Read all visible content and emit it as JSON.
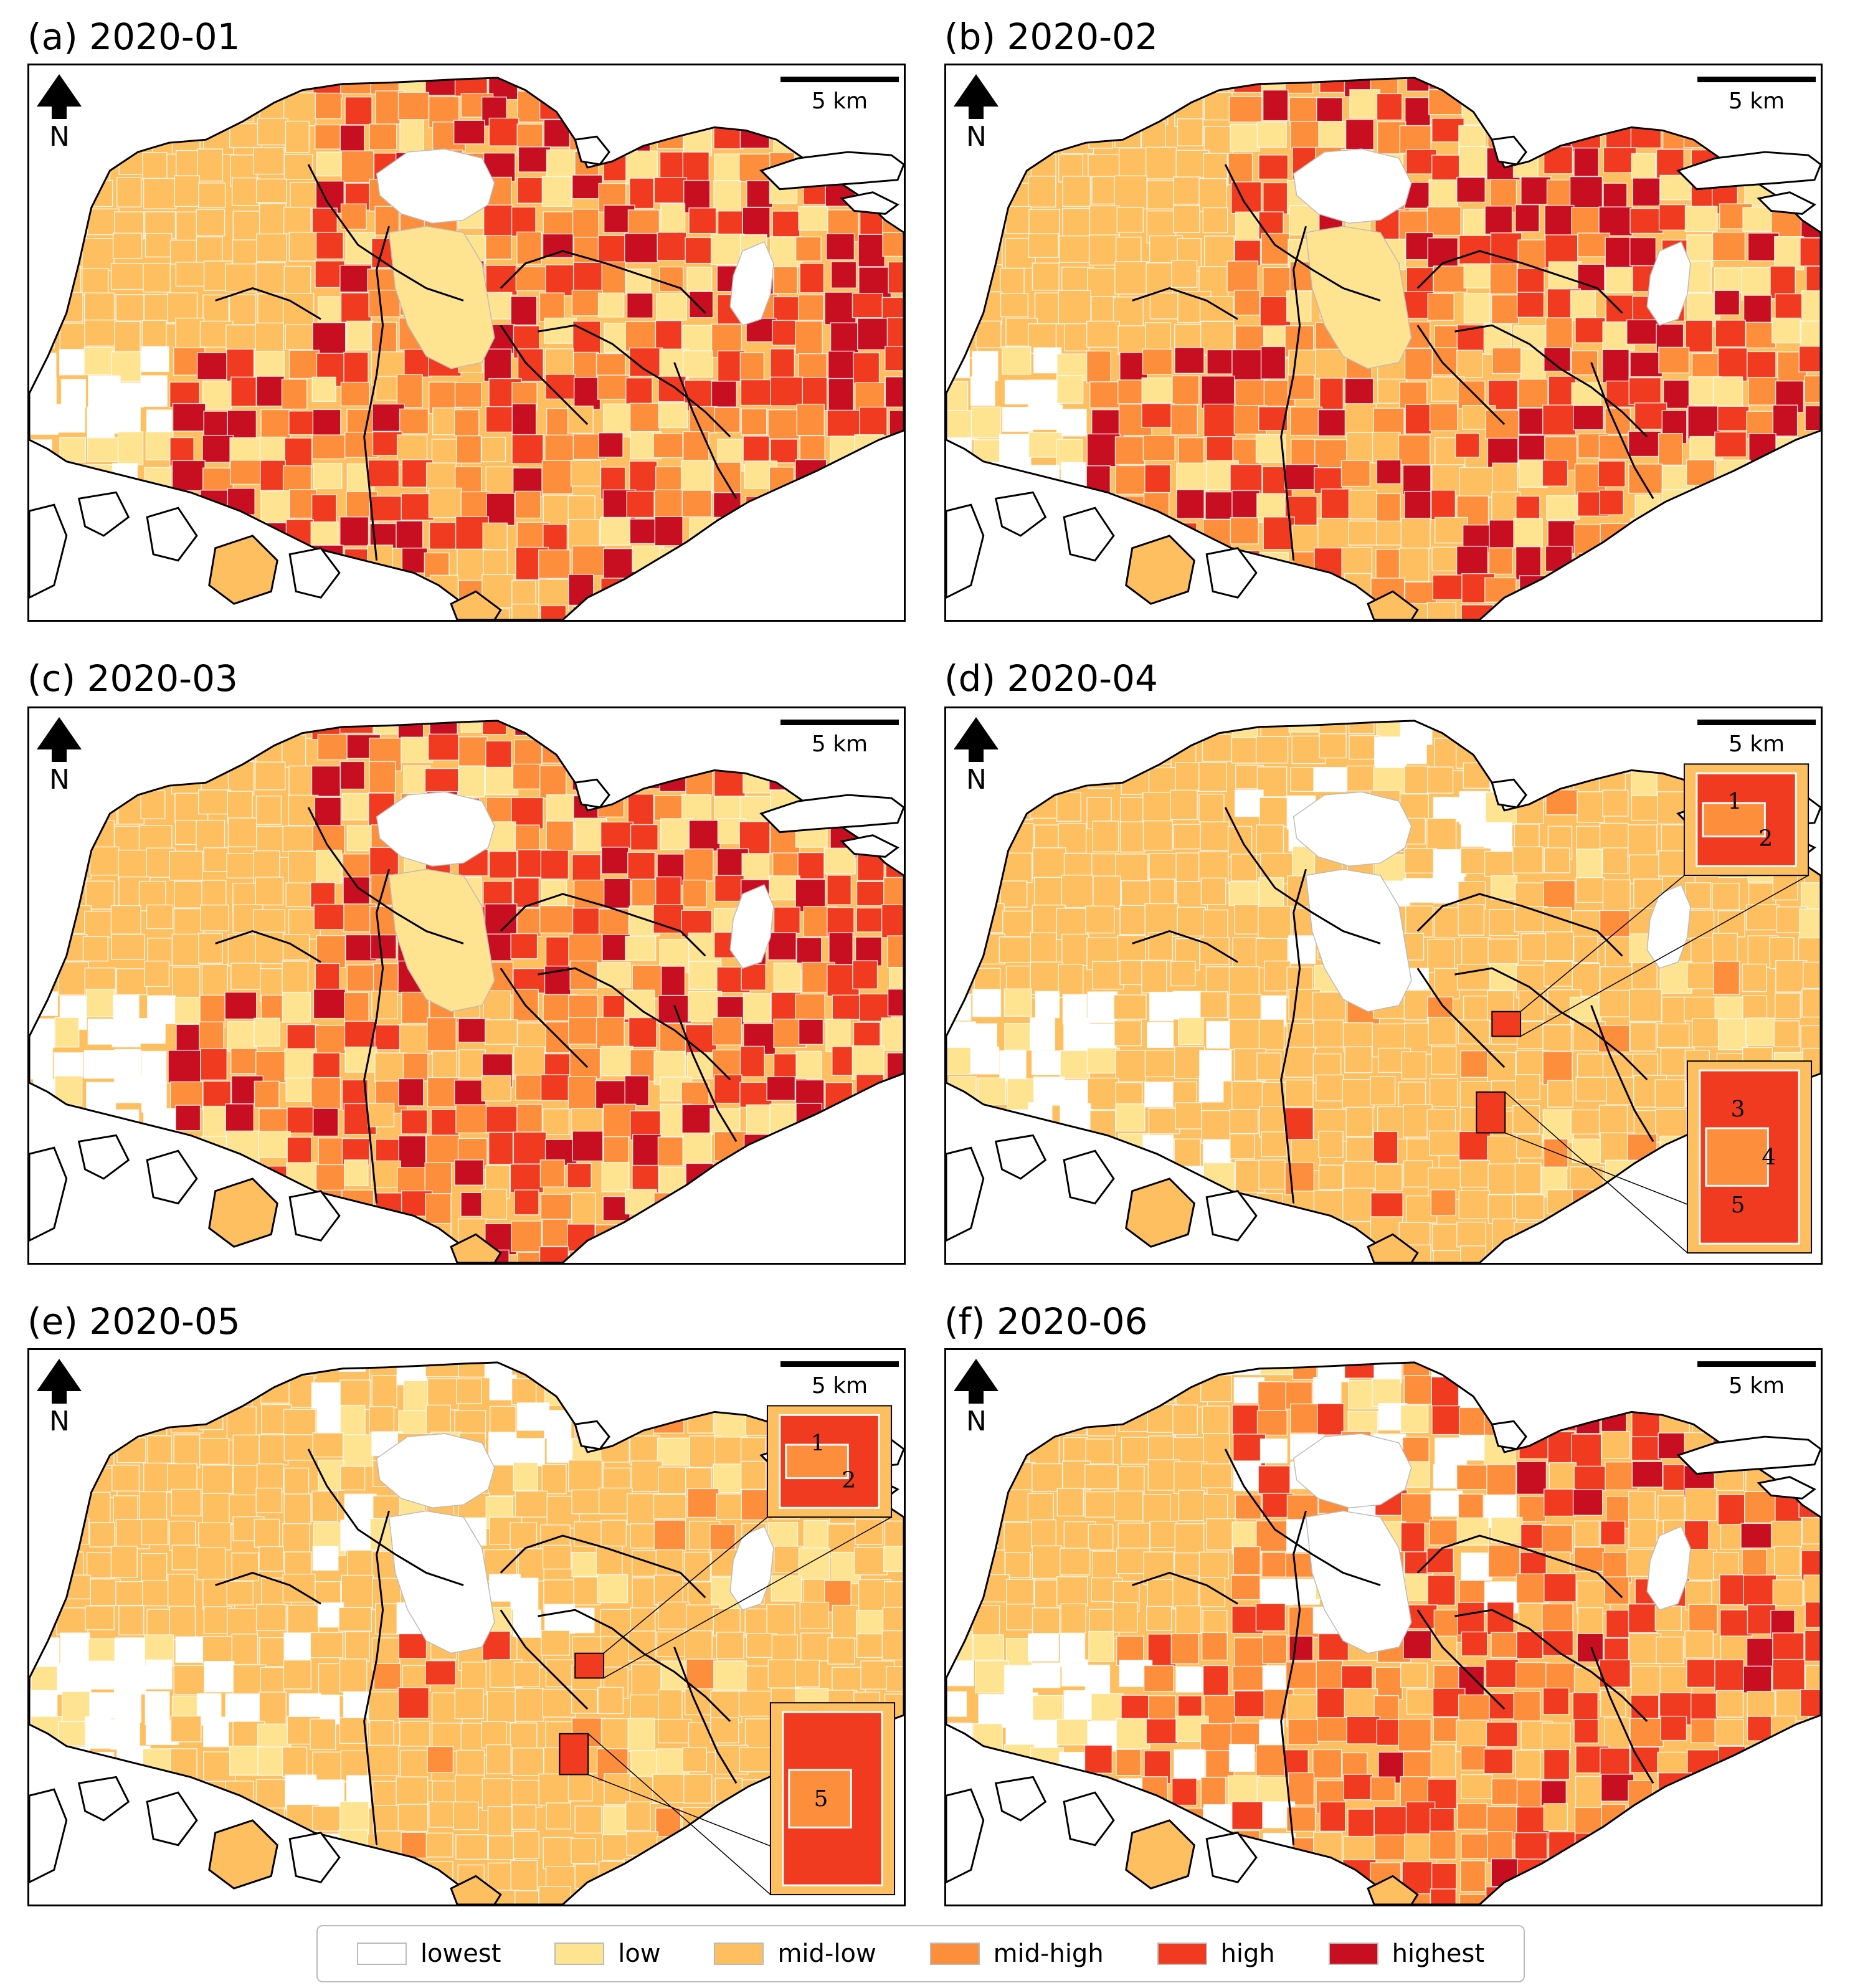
{
  "colors": {
    "lowest": "#ffffff",
    "low": "#fee391",
    "mid-low": "#fdbf5f",
    "mid-high": "#fd8e3c",
    "high": "#f03b20",
    "highest": "#c80f22",
    "outline": "#000000"
  },
  "panels": [
    {
      "title": "(a) 2020-01",
      "scale": "5 km",
      "north": "N",
      "level": "high",
      "insets": []
    },
    {
      "title": "(b) 2020-02",
      "scale": "5 km",
      "north": "N",
      "level": "high",
      "insets": []
    },
    {
      "title": "(c) 2020-03",
      "scale": "5 km",
      "north": "N",
      "level": "high",
      "insets": []
    },
    {
      "title": "(d) 2020-04",
      "scale": "5 km",
      "north": "N",
      "level": "low",
      "insets": [
        {
          "labels": [
            "1",
            "2"
          ]
        },
        {
          "labels": [
            "3",
            "4",
            "5"
          ]
        }
      ]
    },
    {
      "title": "(e) 2020-05",
      "scale": "5 km",
      "north": "N",
      "level": "low",
      "insets": [
        {
          "labels": [
            "1",
            "2"
          ]
        },
        {
          "labels": [
            "5"
          ]
        }
      ]
    },
    {
      "title": "(f) 2020-06",
      "scale": "5 km",
      "north": "N",
      "level": "mid",
      "insets": []
    }
  ],
  "legend": [
    {
      "label": "lowest",
      "color": "#ffffff"
    },
    {
      "label": "low",
      "color": "#fee391"
    },
    {
      "label": "mid-low",
      "color": "#fdbf5f"
    },
    {
      "label": "mid-high",
      "color": "#fd8e3c"
    },
    {
      "label": "high",
      "color": "#f03b20"
    },
    {
      "label": "highest",
      "color": "#c80f22"
    }
  ]
}
